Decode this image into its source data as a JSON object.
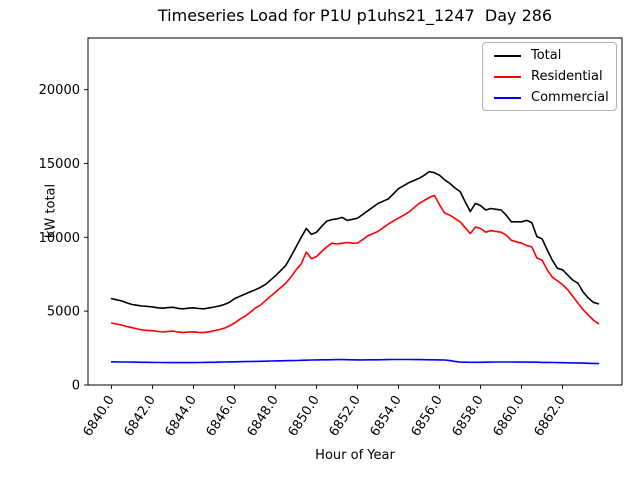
{
  "figure": {
    "title": "Timeseries Load for P1U p1uhs21_1247  Day 286",
    "xlabel": "Hour of Year",
    "ylabel": "kW total"
  },
  "legend": {
    "position": "upper right",
    "items": [
      {
        "label": "Total",
        "color": "#000000"
      },
      {
        "label": "Residential",
        "color": "#ff0000"
      },
      {
        "label": "Commercial",
        "color": "#0000ff"
      }
    ]
  },
  "chart_data": {
    "type": "line",
    "title": "Timeseries Load for P1U p1uhs21_1247  Day 286",
    "xlabel": "Hour of Year",
    "ylabel": "kW total",
    "grid": false,
    "legend_position": "upper right",
    "xlim": [
      6838.85,
      6864.9
    ],
    "ylim": [
      0,
      23500
    ],
    "xticks": [
      6840,
      6842,
      6844,
      6846,
      6848,
      6850,
      6852,
      6854,
      6856,
      6858,
      6860,
      6862
    ],
    "xtick_labels": [
      "6840.0",
      "6842.0",
      "6844.0",
      "6846.0",
      "6848.0",
      "6850.0",
      "6852.0",
      "6854.0",
      "6856.0",
      "6858.0",
      "6860.0",
      "6862.0"
    ],
    "yticks": [
      0,
      5000,
      10000,
      15000,
      20000
    ],
    "ytick_labels": [
      "0",
      "5000",
      "10000",
      "15000",
      "20000"
    ],
    "x_resolution_hours": 0.25,
    "x": [
      6840,
      6840.25,
      6840.5,
      6840.75,
      6841,
      6841.25,
      6841.5,
      6841.75,
      6842,
      6842.25,
      6842.5,
      6842.75,
      6843,
      6843.25,
      6843.5,
      6843.75,
      6844,
      6844.25,
      6844.5,
      6844.75,
      6845,
      6845.25,
      6845.5,
      6845.75,
      6846,
      6846.25,
      6846.5,
      6846.75,
      6847,
      6847.25,
      6847.5,
      6847.75,
      6848,
      6848.25,
      6848.5,
      6848.75,
      6849,
      6849.25,
      6849.5,
      6849.75,
      6850,
      6850.25,
      6850.5,
      6850.75,
      6851,
      6851.25,
      6851.5,
      6851.75,
      6852,
      6852.25,
      6852.5,
      6852.75,
      6853,
      6853.25,
      6853.5,
      6853.75,
      6854,
      6854.25,
      6854.5,
      6854.75,
      6855,
      6855.25,
      6855.5,
      6855.75,
      6856,
      6856.25,
      6856.5,
      6856.75,
      6857,
      6857.25,
      6857.5,
      6857.75,
      6858,
      6858.25,
      6858.5,
      6858.75,
      6859,
      6859.25,
      6859.5,
      6859.75,
      6860,
      6860.25,
      6860.5,
      6860.75,
      6861,
      6861.25,
      6861.5,
      6861.75,
      6862,
      6862.25,
      6862.5,
      6862.75,
      6863,
      6863.25,
      6863.5,
      6863.75
    ],
    "series": [
      {
        "name": "Total",
        "color": "#000000",
        "values": [
          5850,
          5770,
          5690,
          5560,
          5450,
          5400,
          5350,
          5320,
          5290,
          5230,
          5200,
          5240,
          5260,
          5190,
          5160,
          5200,
          5230,
          5180,
          5160,
          5220,
          5280,
          5350,
          5450,
          5600,
          5850,
          6000,
          6150,
          6300,
          6450,
          6600,
          6800,
          7100,
          7400,
          7750,
          8100,
          8700,
          9350,
          10000,
          10600,
          10200,
          10350,
          10750,
          11100,
          11200,
          11250,
          11350,
          11150,
          11220,
          11300,
          11550,
          11800,
          12050,
          12300,
          12450,
          12600,
          12950,
          13300,
          13500,
          13700,
          13850,
          14000,
          14200,
          14450,
          14380,
          14200,
          13900,
          13650,
          13350,
          13100,
          12400,
          11750,
          12300,
          12150,
          11850,
          11950,
          11900,
          11850,
          11500,
          11050,
          11050,
          11050,
          11150,
          11000,
          10050,
          9900,
          9150,
          8450,
          7900,
          7800,
          7450,
          7100,
          6900,
          6300,
          5900,
          5600,
          5500
        ]
      },
      {
        "name": "Residential",
        "color": "#ff0000",
        "values": [
          4200,
          4130,
          4060,
          3960,
          3880,
          3800,
          3730,
          3700,
          3680,
          3620,
          3590,
          3630,
          3650,
          3580,
          3550,
          3580,
          3600,
          3560,
          3550,
          3600,
          3680,
          3750,
          3850,
          4000,
          4200,
          4450,
          4650,
          4900,
          5200,
          5400,
          5700,
          6000,
          6300,
          6600,
          6900,
          7300,
          7800,
          8200,
          9000,
          8560,
          8700,
          9050,
          9350,
          9600,
          9550,
          9600,
          9650,
          9600,
          9620,
          9850,
          10100,
          10250,
          10400,
          10650,
          10900,
          11100,
          11300,
          11500,
          11700,
          12000,
          12300,
          12500,
          12700,
          12840,
          12200,
          11650,
          11500,
          11280,
          11050,
          10650,
          10250,
          10700,
          10600,
          10350,
          10450,
          10400,
          10350,
          10150,
          9800,
          9700,
          9600,
          9450,
          9350,
          8600,
          8450,
          7800,
          7300,
          7050,
          6800,
          6450,
          6000,
          5550,
          5100,
          4750,
          4400,
          4150
        ]
      },
      {
        "name": "Commercial",
        "color": "#0000ff",
        "values": [
          1570,
          1565,
          1560,
          1555,
          1550,
          1545,
          1540,
          1535,
          1530,
          1525,
          1525,
          1520,
          1520,
          1520,
          1520,
          1520,
          1520,
          1525,
          1530,
          1535,
          1540,
          1548,
          1555,
          1562,
          1570,
          1578,
          1585,
          1592,
          1600,
          1608,
          1615,
          1622,
          1630,
          1638,
          1645,
          1652,
          1660,
          1670,
          1680,
          1690,
          1700,
          1705,
          1710,
          1715,
          1720,
          1718,
          1715,
          1708,
          1700,
          1702,
          1705,
          1708,
          1710,
          1715,
          1720,
          1725,
          1730,
          1728,
          1725,
          1722,
          1720,
          1715,
          1710,
          1705,
          1700,
          1690,
          1650,
          1600,
          1550,
          1545,
          1540,
          1540,
          1540,
          1545,
          1550,
          1555,
          1560,
          1558,
          1555,
          1552,
          1550,
          1548,
          1545,
          1542,
          1530,
          1528,
          1525,
          1520,
          1510,
          1505,
          1500,
          1495,
          1480,
          1470,
          1460,
          1450
        ]
      }
    ]
  }
}
